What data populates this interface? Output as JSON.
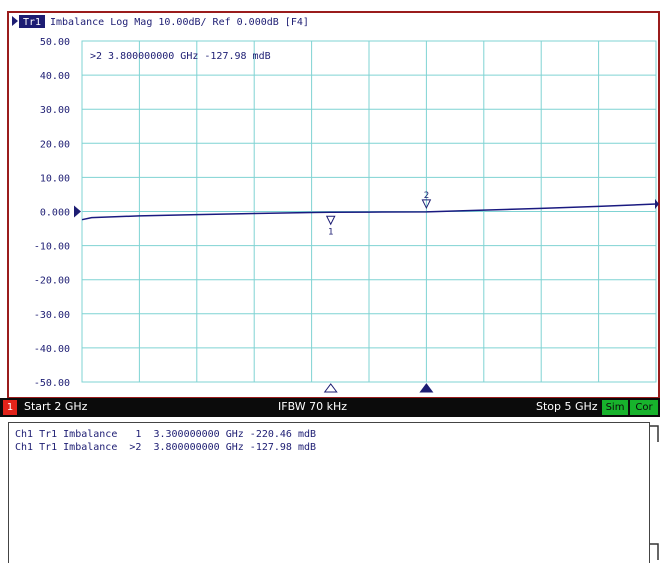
{
  "window": {
    "trace_tag": "Tr1",
    "title_rest": "Imbalance Log Mag 10.00dB/ Ref 0.000dB [F4]",
    "active_marker_readout": ">2  3.800000000 GHz -127.98 mdB"
  },
  "status_bar": {
    "channel_badge": "1",
    "start": "Start 2 GHz",
    "ifbw": "IFBW 70 kHz",
    "stop": "Stop 5 GHz",
    "sim": "Sim",
    "cor": "Cor"
  },
  "marker_table": {
    "rows": [
      "Ch1 Tr1 Imbalance   1  3.300000000 GHz -220.46 mdB",
      "Ch1 Tr1 Imbalance  >2  3.800000000 GHz -127.98 mdB"
    ]
  },
  "chart_data": {
    "type": "line",
    "title": "",
    "xlabel": "",
    "ylabel": "",
    "x_unit": "GHz",
    "xlim": [
      2,
      5
    ],
    "ylim": [
      -50,
      50
    ],
    "y_ticks": [
      "50.00",
      "40.00",
      "30.00",
      "20.00",
      "10.00",
      "0.000",
      "-10.00",
      "-20.00",
      "-30.00",
      "-40.00",
      "-50.00"
    ],
    "grid": true,
    "series": [
      {
        "color": "#1a1a80",
        "x": [
          2.0,
          2.05,
          2.3,
          2.6,
          2.9,
          3.2,
          3.3,
          3.5,
          3.8,
          4.1,
          4.4,
          4.7,
          5.0
        ],
        "y": [
          -2.4,
          -1.8,
          -1.3,
          -0.9,
          -0.6,
          -0.3,
          -0.22,
          -0.18,
          -0.13,
          0.4,
          0.9,
          1.5,
          2.2
        ]
      }
    ],
    "markers": [
      {
        "label": "1",
        "x": 3.3,
        "y": -0.22,
        "active": false
      },
      {
        "label": "2",
        "x": 3.8,
        "y": -0.128,
        "active": true
      }
    ],
    "colors": {
      "frame": "#9a1c1c",
      "grid": "#7fd3d3",
      "trace": "#1a1a80",
      "label_text": "#1d1d73"
    }
  }
}
